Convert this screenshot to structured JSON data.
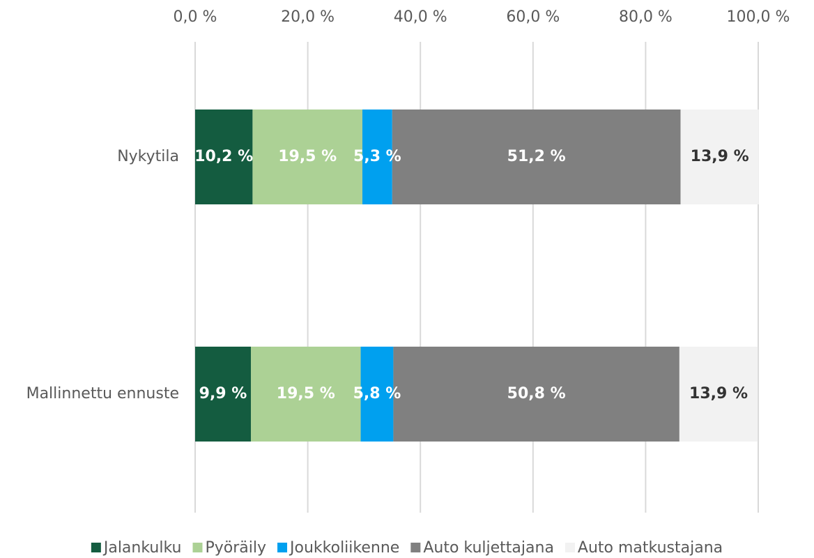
{
  "chart_data": {
    "type": "stacked_barh",
    "categories": [
      "Nykytila",
      "Mallinnettu ennuste"
    ],
    "series": [
      {
        "name": "Jalankulku",
        "color": "#145c40",
        "label_color": "#ffffff",
        "values": [
          10.2,
          9.9
        ],
        "value_labels": [
          "10,2 %",
          "9,9 %"
        ]
      },
      {
        "name": "Pyöräily",
        "color": "#acd195",
        "label_color": "#ffffff",
        "values": [
          19.5,
          19.5
        ],
        "value_labels": [
          "19,5 %",
          "19,5 %"
        ]
      },
      {
        "name": "Joukkoliikenne",
        "color": "#00a0ef",
        "label_color": "#ffffff",
        "values": [
          5.3,
          5.8
        ],
        "value_labels": [
          "5,3 %",
          "5,8 %"
        ]
      },
      {
        "name": "Auto kuljettajana",
        "color": "#808080",
        "label_color": "#ffffff",
        "values": [
          51.2,
          50.8
        ],
        "value_labels": [
          "51,2 %",
          "50,8 %"
        ]
      },
      {
        "name": "Auto matkustajana",
        "color": "#f2f2f2",
        "label_color": "#333333",
        "values": [
          13.9,
          13.9
        ],
        "value_labels": [
          "13,9 %",
          "13,9 %"
        ]
      }
    ],
    "xlim": [
      0,
      100
    ],
    "xticks": [
      {
        "value": 0,
        "label": "0,0 %"
      },
      {
        "value": 20,
        "label": "20,0 %"
      },
      {
        "value": 40,
        "label": "40,0 %"
      },
      {
        "value": 60,
        "label": "60,0 %"
      },
      {
        "value": 80,
        "label": "80,0 %"
      },
      {
        "value": 100,
        "label": "100,0 %"
      }
    ],
    "grid": true,
    "legend": "bottom"
  }
}
